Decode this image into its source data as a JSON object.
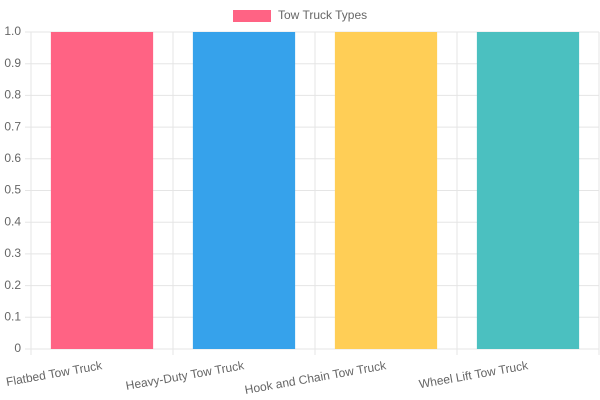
{
  "chart_data": {
    "type": "bar",
    "categories": [
      "Flatbed Tow Truck",
      "Heavy-Duty Tow Truck",
      "Hook and Chain Tow Truck",
      "Wheel Lift Tow Truck"
    ],
    "series": [
      {
        "name": "Tow Truck Types",
        "colors": [
          "#ff6384",
          "#36a2eb",
          "#ffce56",
          "#4bc0c0"
        ],
        "values": [
          1,
          1,
          1,
          1
        ]
      }
    ],
    "ylim": [
      0,
      1
    ],
    "yticks": [
      0,
      0.1,
      0.2,
      0.3,
      0.4,
      0.5,
      0.6,
      0.7,
      0.8,
      0.9,
      {
        "value": 1,
        "label": "1.0"
      }
    ],
    "grid": true,
    "legend": "top"
  }
}
